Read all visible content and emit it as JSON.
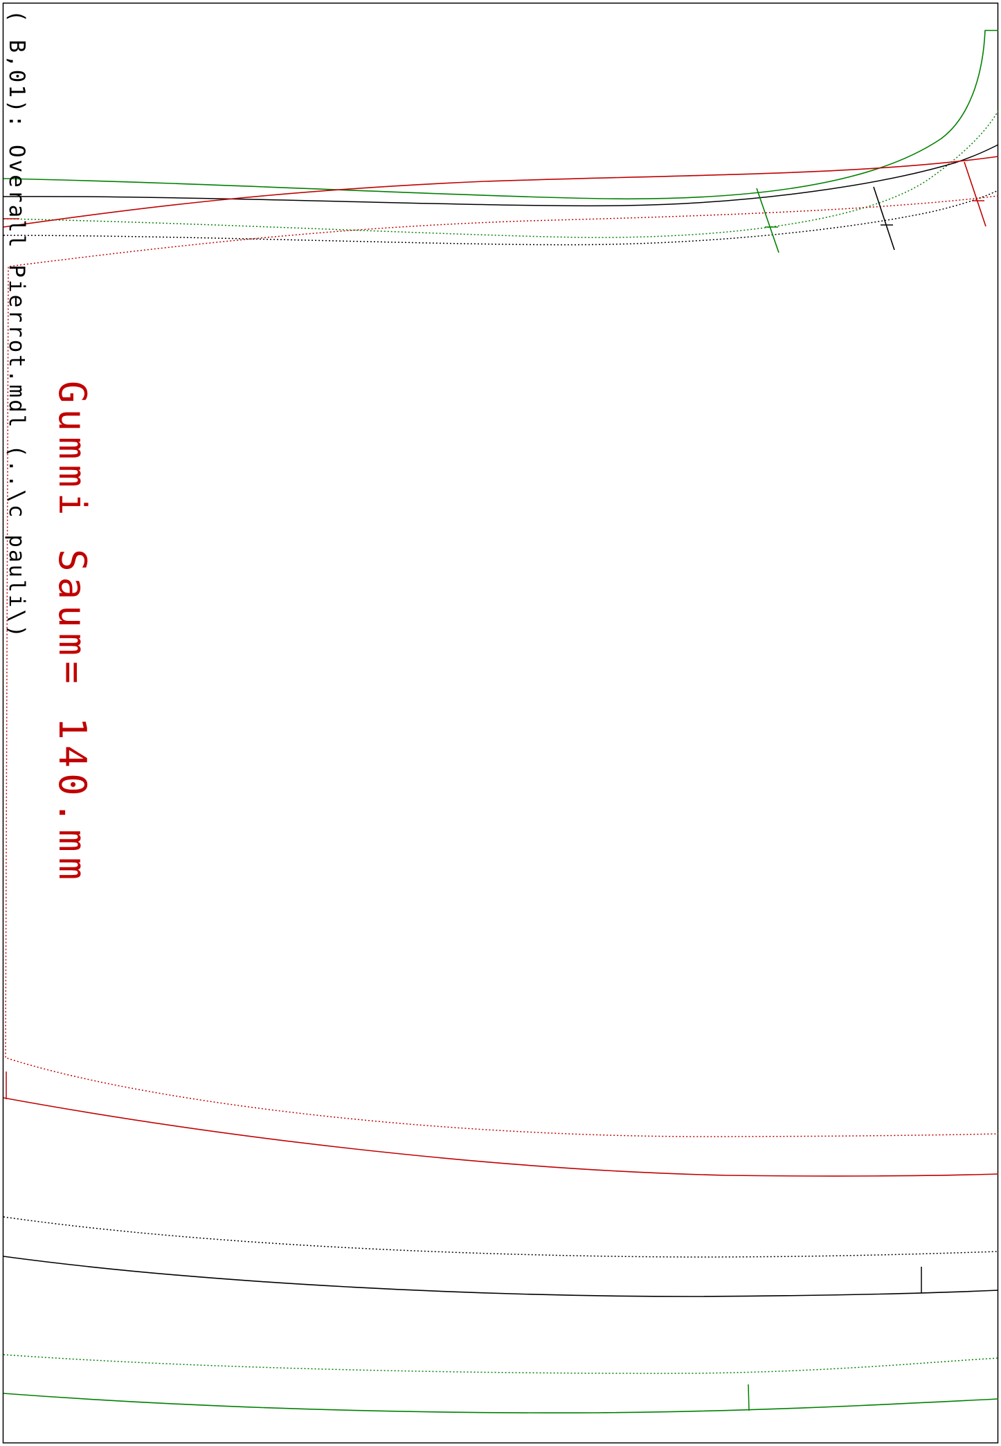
{
  "header": {
    "file_label": "( B,01): Overall Pierrot.mdl (..\\c pauli\\)"
  },
  "annotation": {
    "text": "Gummi Saum=  140.mm"
  },
  "colors": {
    "frame": "#000000",
    "red": "#c00000",
    "green": "#008000",
    "black": "#000000"
  }
}
